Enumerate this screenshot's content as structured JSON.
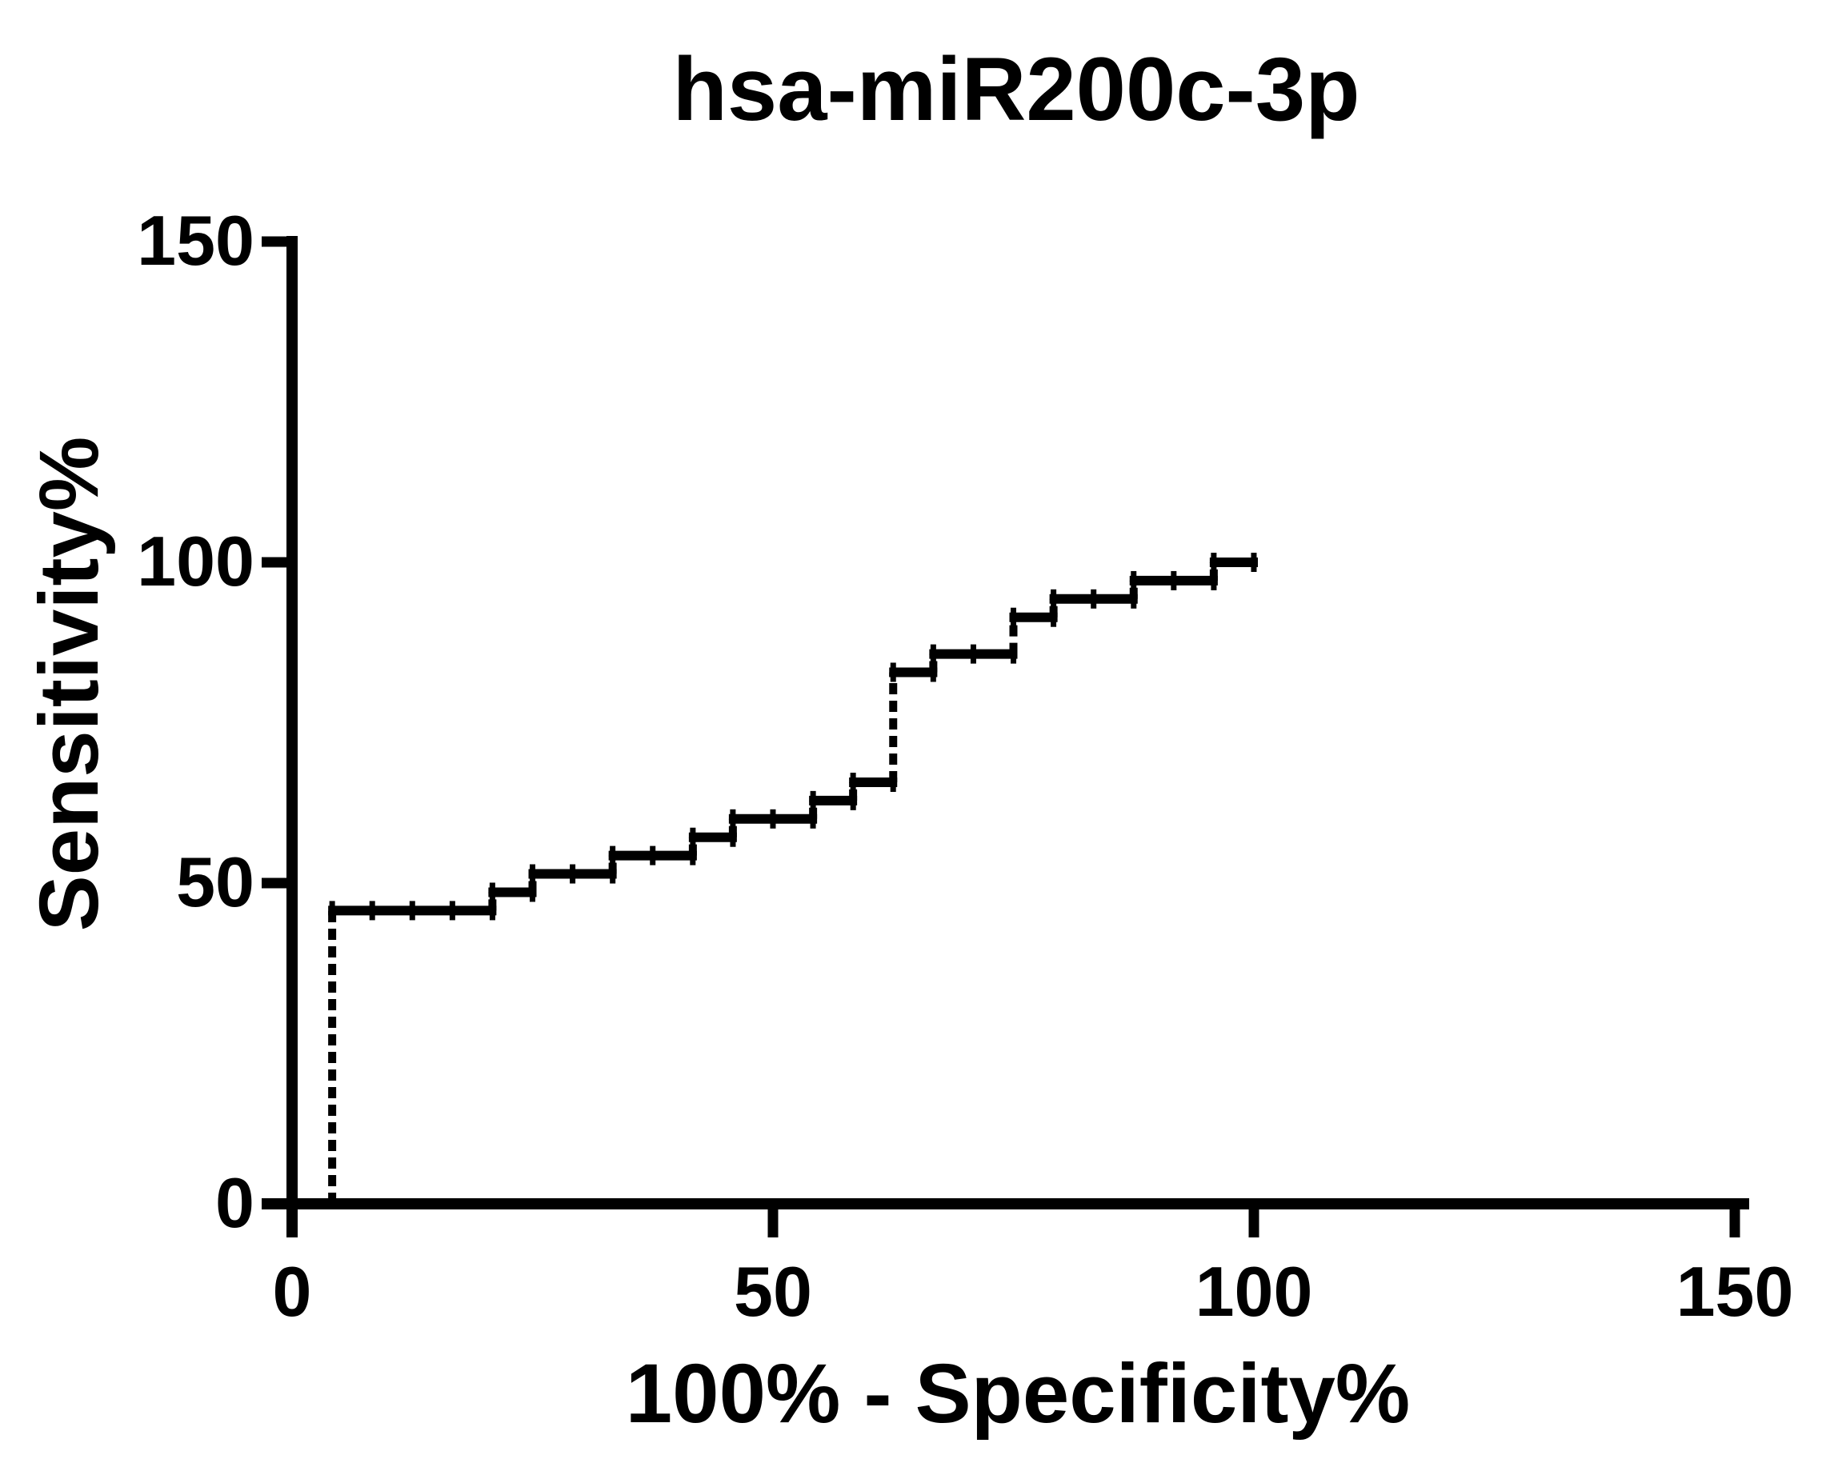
{
  "page": {
    "background": "#ffffff"
  },
  "chart_data": {
    "type": "line",
    "subtype": "roc-step-curve",
    "title": "hsa-miR200c-3p",
    "xlabel": "100% - Specificity%",
    "ylabel": "Sensitivity%",
    "xlim": [
      0,
      150
    ],
    "ylim": [
      0,
      150
    ],
    "xticks": [
      0,
      50,
      100,
      150
    ],
    "yticks": [
      0,
      50,
      100,
      150
    ],
    "grid": false,
    "legend": "none",
    "line_color": "#000000",
    "curve_points": [
      [
        4.17,
        0
      ],
      [
        4.17,
        45.71
      ],
      [
        20.83,
        45.71
      ],
      [
        20.83,
        48.57
      ],
      [
        25.0,
        48.57
      ],
      [
        25.0,
        51.43
      ],
      [
        33.33,
        51.43
      ],
      [
        33.33,
        54.29
      ],
      [
        41.67,
        54.29
      ],
      [
        41.67,
        57.14
      ],
      [
        45.83,
        57.14
      ],
      [
        45.83,
        60.0
      ],
      [
        54.17,
        60.0
      ],
      [
        54.17,
        62.86
      ],
      [
        58.33,
        62.86
      ],
      [
        58.33,
        65.71
      ],
      [
        62.5,
        65.71
      ],
      [
        62.5,
        82.86
      ],
      [
        66.67,
        82.86
      ],
      [
        66.67,
        85.71
      ],
      [
        75.0,
        85.71
      ],
      [
        75.0,
        91.43
      ],
      [
        79.17,
        91.43
      ],
      [
        79.17,
        94.29
      ],
      [
        87.5,
        94.29
      ],
      [
        87.5,
        97.14
      ],
      [
        95.83,
        97.14
      ],
      [
        95.83,
        100.0
      ],
      [
        100.0,
        100.0
      ]
    ],
    "marker_step_x": 4.1667,
    "marker_step_y": 2.8571
  }
}
